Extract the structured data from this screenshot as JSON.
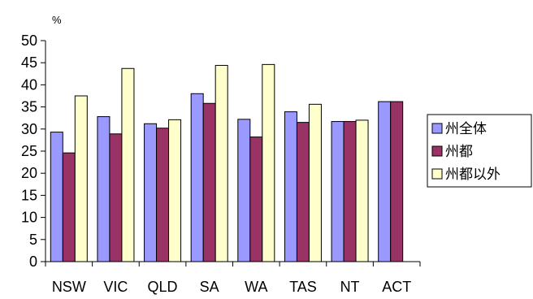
{
  "chart_data": {
    "type": "bar",
    "ylabel": "%",
    "ylim": [
      0,
      50
    ],
    "ytick_step": 5,
    "grid": false,
    "legend_position": "right",
    "categories": [
      "NSW",
      "VIC",
      "QLD",
      "SA",
      "WA",
      "TAS",
      "NT",
      "ACT"
    ],
    "series": [
      {
        "name": "州全体",
        "color": "#9999ff",
        "values": [
          29.3,
          32.8,
          31.2,
          38.0,
          32.2,
          33.9,
          31.7,
          36.2
        ]
      },
      {
        "name": "州都",
        "color": "#993366",
        "values": [
          24.6,
          28.9,
          30.2,
          35.8,
          28.2,
          31.5,
          31.7,
          36.2
        ]
      },
      {
        "name": "州都以外",
        "color": "#ffffcc",
        "values": [
          37.5,
          43.7,
          32.1,
          44.4,
          44.6,
          35.6,
          32.0,
          null
        ]
      }
    ]
  }
}
